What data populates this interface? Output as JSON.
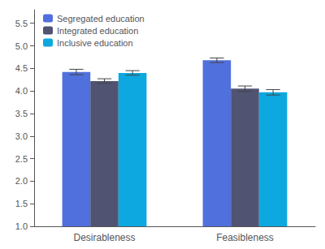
{
  "chart_data": {
    "type": "bar",
    "categories": [
      "Desirableness",
      "Feasibleness"
    ],
    "series": [
      {
        "name": "Segregated education",
        "values": [
          4.42,
          4.68
        ],
        "errors": [
          0.06,
          0.05
        ]
      },
      {
        "name": "Integrated education",
        "values": [
          4.22,
          4.05
        ],
        "errors": [
          0.05,
          0.06
        ]
      },
      {
        "name": "Inclusive education",
        "values": [
          4.4,
          3.97
        ],
        "errors": [
          0.05,
          0.06
        ]
      }
    ],
    "ylim": [
      1.0,
      5.8
    ],
    "yticks": [
      {
        "value": 1,
        "label": "1.0"
      },
      1.5,
      {
        "value": 2,
        "label": "2.0"
      },
      2.5,
      {
        "value": 3,
        "label": "3.0"
      },
      3.5,
      {
        "value": 4,
        "label": "4.0"
      },
      4.5,
      {
        "value": 5,
        "label": "5.0"
      },
      5.5
    ],
    "grid": false,
    "legend": "upper left"
  }
}
